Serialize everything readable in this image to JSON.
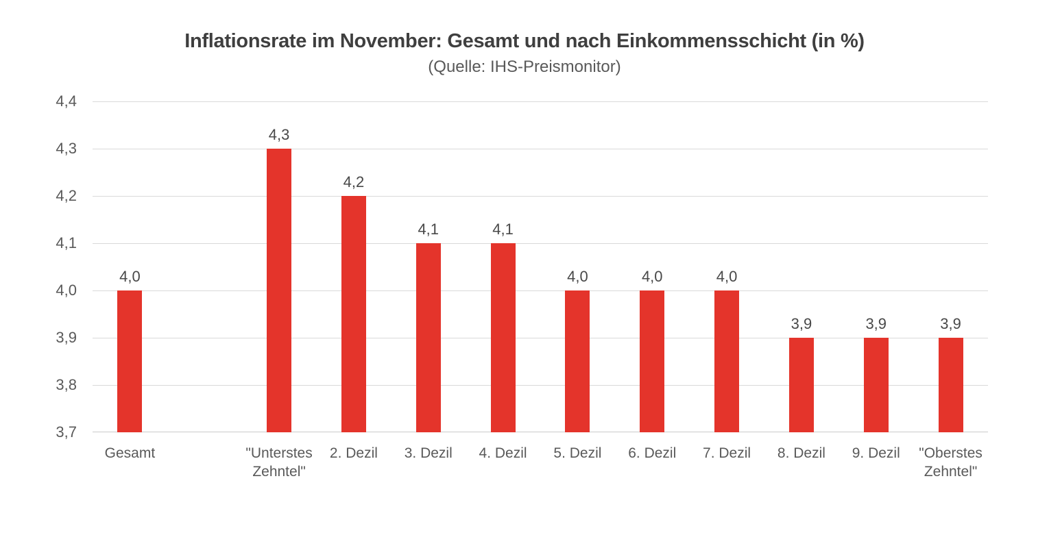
{
  "colors": {
    "background": "#FFFFFF",
    "bar": "#E4342B",
    "gridline": "#D9D9D9",
    "axis_line": "#C9C9C9",
    "axis_text": "#595959",
    "data_label_text": "#484848",
    "title_text": "#3F3F3F",
    "subtitle_text": "#595959"
  },
  "chart_data": {
    "type": "bar",
    "title": "Inflationsrate im November: Gesamt und nach Einkommensschicht (in %)",
    "subtitle": "(Quelle: IHS-Preismonitor)",
    "categories": [
      "Gesamt",
      "",
      "\"Unterstes Zehntel\"",
      "2. Dezil",
      "3. Dezil",
      "4. Dezil",
      "5. Dezil",
      "6. Dezil",
      "7. Dezil",
      "8. Dezil",
      "9. Dezil",
      "\"Oberstes Zehntel\""
    ],
    "values": [
      4.0,
      null,
      4.3,
      4.2,
      4.1,
      4.1,
      4.0,
      4.0,
      4.0,
      3.9,
      3.9,
      3.9
    ],
    "data_labels": [
      "4,0",
      "",
      "4,3",
      "4,2",
      "4,1",
      "4,1",
      "4,0",
      "4,0",
      "4,0",
      "3,9",
      "3,9",
      "3,9"
    ],
    "xlabel": "",
    "ylabel": "",
    "ylim": [
      3.7,
      4.4
    ],
    "ytick_step": 0.1,
    "ytick_labels_top_to_bottom": [
      "4,4",
      "4,3",
      "4,2",
      "4,1",
      "4,0",
      "3,9",
      "3,8",
      "3,7"
    ],
    "grid": true,
    "legend": false,
    "decimal_separator": ","
  }
}
